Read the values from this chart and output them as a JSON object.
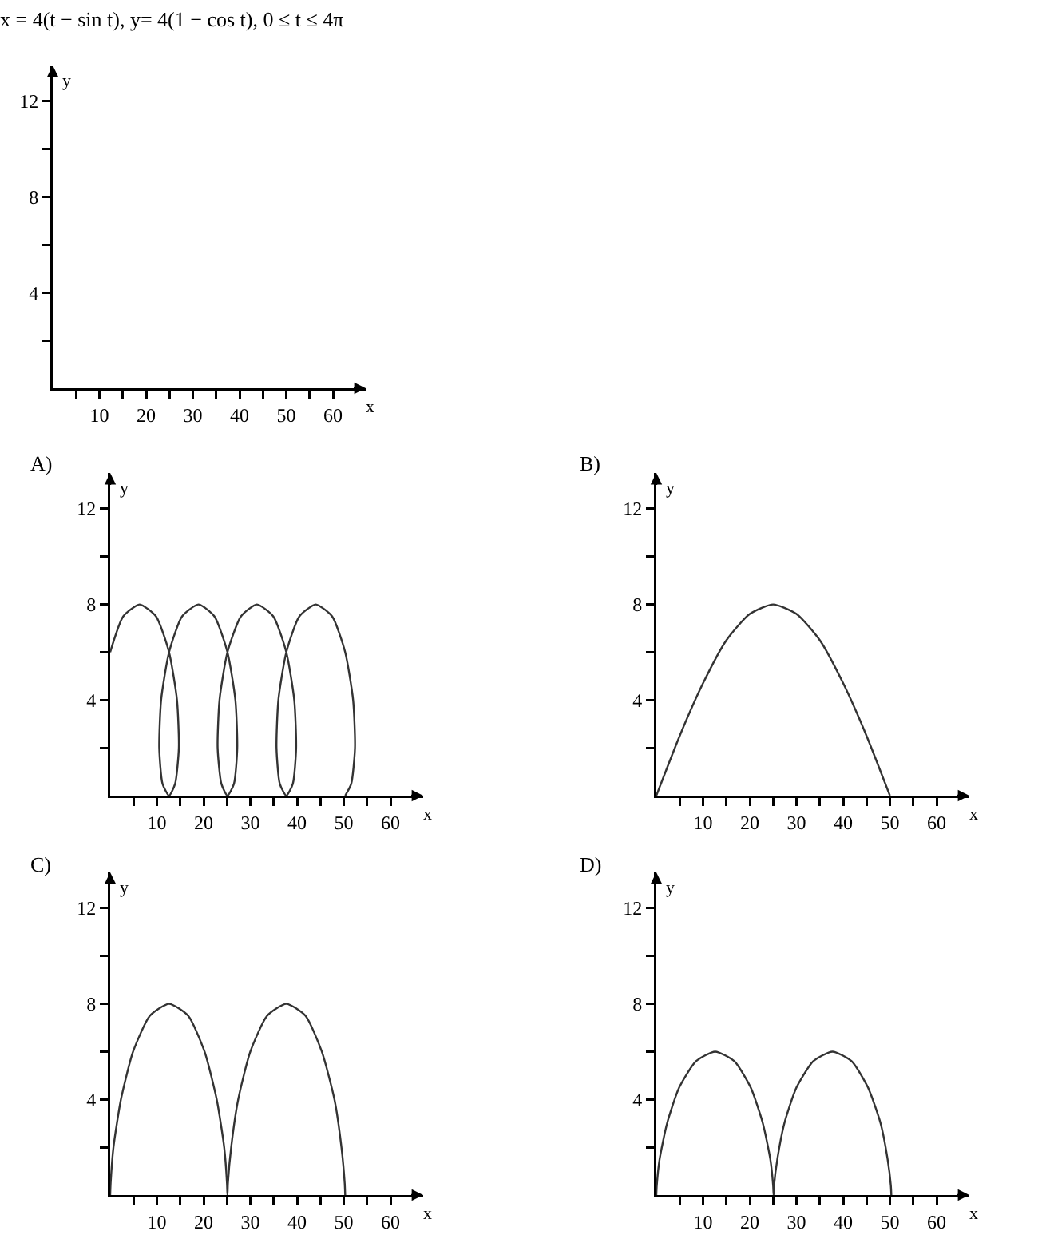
{
  "chart_data": [
    {
      "type": "line",
      "title": "x = 4(t − sin t), y= 4(1 − cos t), 0 ≤ t ≤ 4π",
      "xlabel": "x",
      "ylabel": "y",
      "xlim": [
        0,
        67
      ],
      "ylim": [
        0,
        13.5
      ],
      "xticks": [
        {
          "value": 5,
          "label": null
        },
        10,
        {
          "value": 15,
          "label": null
        },
        20,
        {
          "value": 25,
          "label": null
        },
        30,
        {
          "value": 35,
          "label": null
        },
        40,
        {
          "value": 45,
          "label": null
        },
        50,
        {
          "value": 55,
          "label": null
        },
        60
      ],
      "yticks": [
        {
          "value": 2,
          "label": null
        },
        4,
        {
          "value": 6,
          "label": null
        },
        8,
        {
          "value": 10,
          "label": null
        },
        12
      ],
      "grid": false
    },
    {
      "type": "line",
      "title": "A)",
      "xlabel": "x",
      "ylabel": "y",
      "xlim": [
        0,
        67
      ],
      "ylim": [
        0,
        13.5
      ],
      "xticks": [
        {
          "value": 5,
          "label": null
        },
        10,
        {
          "value": 15,
          "label": null
        },
        20,
        {
          "value": 25,
          "label": null
        },
        30,
        {
          "value": 35,
          "label": null
        },
        40,
        {
          "value": 45,
          "label": null
        },
        50,
        {
          "value": 55,
          "label": null
        },
        60
      ],
      "yticks": [
        {
          "value": 2,
          "label": null
        },
        4,
        {
          "value": 6,
          "label": null
        },
        8,
        {
          "value": 10,
          "label": null
        },
        12
      ],
      "grid": false,
      "marker": "none",
      "series": [
        {
          "color": "#333333",
          "x": [
            0,
            2.8,
            6.3,
            9.8,
            12.6,
            14.3,
            14.7,
            13.9,
            12.6,
            11.2,
            10.5,
            10.9,
            12.6,
            15.4,
            18.9,
            22.3,
            25.1,
            26.8,
            27.2,
            26.5,
            25.1,
            23.8,
            23.0,
            23.4,
            25.1,
            28.0,
            31.4,
            34.9,
            37.7,
            39.4,
            39.8,
            39.1,
            37.7,
            36.3,
            35.6,
            36.0,
            37.7,
            40.5,
            44.0,
            47.5,
            50.3,
            52.0,
            52.4,
            51.6,
            50.3
          ],
          "values": [
            6,
            7.5,
            8,
            7.5,
            6,
            4,
            2,
            0.5,
            0,
            0.5,
            2,
            4,
            6,
            7.5,
            8,
            7.5,
            6,
            4,
            2,
            0.5,
            0,
            0.5,
            2,
            4,
            6,
            7.5,
            8,
            7.5,
            6,
            4,
            2,
            0.5,
            0,
            0.5,
            2,
            4,
            6,
            7.5,
            8,
            7.5,
            6,
            4,
            2,
            0.5,
            0
          ]
        }
      ]
    },
    {
      "type": "line",
      "title": "B)",
      "xlabel": "x",
      "ylabel": "y",
      "xlim": [
        0,
        67
      ],
      "ylim": [
        0,
        13.5
      ],
      "xticks": [
        {
          "value": 5,
          "label": null
        },
        10,
        {
          "value": 15,
          "label": null
        },
        20,
        {
          "value": 25,
          "label": null
        },
        30,
        {
          "value": 35,
          "label": null
        },
        40,
        {
          "value": 45,
          "label": null
        },
        50,
        {
          "value": 55,
          "label": null
        },
        60
      ],
      "yticks": [
        {
          "value": 2,
          "label": null
        },
        4,
        {
          "value": 6,
          "label": null
        },
        8,
        {
          "value": 10,
          "label": null
        },
        12
      ],
      "grid": false,
      "marker": "none",
      "series": [
        {
          "color": "#333333",
          "x": [
            0,
            5,
            10,
            15,
            20,
            25,
            30,
            35,
            40,
            45,
            50
          ],
          "values": [
            0,
            2.5,
            4.7,
            6.5,
            7.6,
            8,
            7.6,
            6.5,
            4.7,
            2.5,
            0
          ]
        }
      ]
    },
    {
      "type": "line",
      "title": "C)",
      "xlabel": "x",
      "ylabel": "y",
      "xlim": [
        0,
        67
      ],
      "ylim": [
        0,
        13.5
      ],
      "xticks": [
        {
          "value": 5,
          "label": null
        },
        10,
        {
          "value": 15,
          "label": null
        },
        20,
        {
          "value": 25,
          "label": null
        },
        30,
        {
          "value": 35,
          "label": null
        },
        40,
        {
          "value": 45,
          "label": null
        },
        50,
        {
          "value": 55,
          "label": null
        },
        60
      ],
      "yticks": [
        {
          "value": 2,
          "label": null
        },
        4,
        {
          "value": 6,
          "label": null
        },
        8,
        {
          "value": 10,
          "label": null
        },
        12
      ],
      "grid": false,
      "marker": "none",
      "series": [
        {
          "color": "#333333",
          "x": [
            0,
            0.1,
            0.7,
            2.3,
            4.9,
            8.5,
            12.6,
            16.7,
            20.2,
            22.8,
            24.4,
            25.0,
            25.1,
            25.2,
            25.9,
            27.4,
            30.0,
            33.6,
            37.7,
            41.8,
            45.3,
            48.0,
            49.5,
            50.2,
            50.3
          ],
          "values": [
            0,
            0.5,
            2,
            4,
            6,
            7.5,
            8,
            7.5,
            6,
            4,
            2,
            0.5,
            0,
            0.5,
            2,
            4,
            6,
            7.5,
            8,
            7.5,
            6,
            4,
            2,
            0.5,
            0
          ]
        }
      ]
    },
    {
      "type": "line",
      "title": "D)",
      "xlabel": "x",
      "ylabel": "y",
      "xlim": [
        0,
        67
      ],
      "ylim": [
        0,
        13.5
      ],
      "xticks": [
        {
          "value": 5,
          "label": null
        },
        10,
        {
          "value": 15,
          "label": null
        },
        20,
        {
          "value": 25,
          "label": null
        },
        30,
        {
          "value": 35,
          "label": null
        },
        40,
        {
          "value": 45,
          "label": null
        },
        50,
        {
          "value": 55,
          "label": null
        },
        60
      ],
      "yticks": [
        {
          "value": 2,
          "label": null
        },
        4,
        {
          "value": 6,
          "label": null
        },
        8,
        {
          "value": 10,
          "label": null
        },
        12
      ],
      "grid": false,
      "marker": "none",
      "series": [
        {
          "color": "#333333",
          "x": [
            0,
            0.1,
            0.7,
            2.3,
            4.9,
            8.5,
            12.6,
            16.7,
            20.2,
            22.8,
            24.4,
            25.0,
            25.1,
            25.2,
            25.9,
            27.4,
            30.0,
            33.6,
            37.7,
            41.8,
            45.3,
            48.0,
            49.5,
            50.2,
            50.3
          ],
          "values": [
            0,
            0.4,
            1.5,
            3,
            4.5,
            5.6,
            6,
            5.6,
            4.5,
            3,
            1.5,
            0.4,
            0,
            0.4,
            1.5,
            3,
            4.5,
            5.6,
            6,
            5.6,
            4.5,
            3,
            1.5,
            0.4,
            0
          ]
        }
      ]
    }
  ]
}
